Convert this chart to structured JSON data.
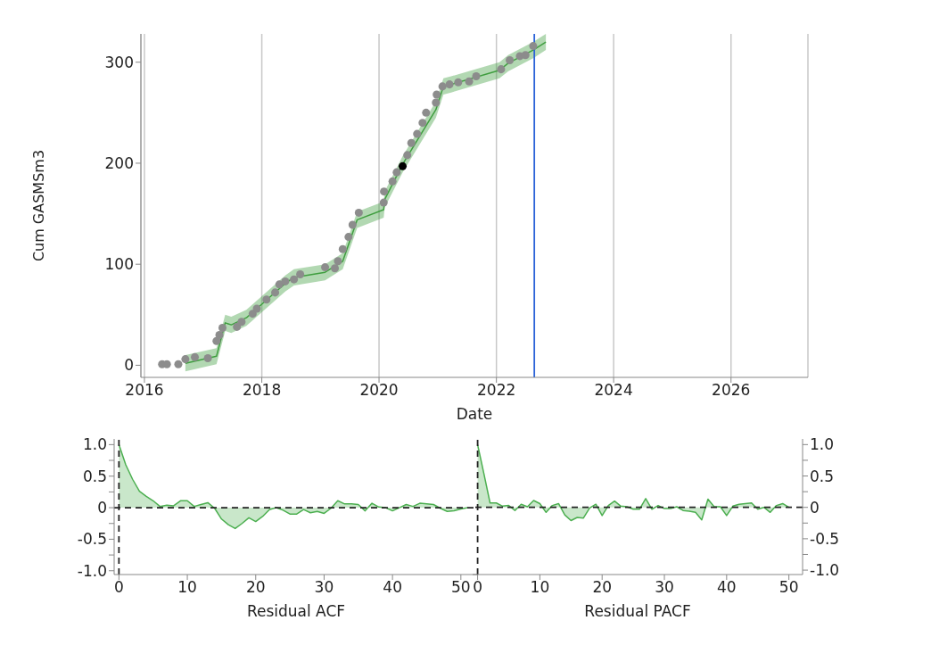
{
  "chart_data": [
    {
      "type": "scatter",
      "xlabel": "Date",
      "ylabel": "Cum GASMSm3",
      "xlim": [
        "2015-12-10",
        "2027-04-25"
      ],
      "xticks": [
        "2016",
        "2018",
        "2020",
        "2022",
        "2024",
        "2026"
      ],
      "ylim": [
        -12,
        328
      ],
      "yticks": [
        0,
        100,
        200,
        300
      ],
      "grid": "x",
      "series": [
        {
          "type": "line",
          "color": "#3f9e3f",
          "x": [
            "2016-09-12",
            "2017-03-25",
            "2017-05-18",
            "2017-06-25",
            "2017-09-27",
            "2018-05-27",
            "2018-07-20",
            "2019-01-30",
            "2019-05-20",
            "2019-08-18",
            "2020-01-30",
            "2020-02-05",
            "2020-05-27",
            "2020-12-20",
            "2021-02-05",
            "2021-03-25",
            "2022-01-20",
            "2022-03-15",
            "2022-08-18",
            "2022-11-05"
          ],
          "values": [
            2,
            9,
            42,
            40,
            47,
            81,
            87,
            92,
            103,
            144,
            154,
            164,
            199,
            253,
            276,
            278,
            292,
            299,
            312,
            320
          ],
          "lower": [
            -6,
            1,
            34,
            32,
            39,
            73,
            79,
            84,
            95,
            136,
            146,
            156,
            191,
            245,
            268,
            270,
            284,
            291,
            304,
            312
          ],
          "upper": [
            10,
            17,
            50,
            48,
            55,
            89,
            95,
            100,
            111,
            152,
            162,
            172,
            207,
            261,
            284,
            286,
            300,
            307,
            320,
            328
          ]
        },
        {
          "color": "#8c8c8c",
          "x": [
            "2016-04-20",
            "2016-05-20",
            "2016-07-30",
            "2016-09-12",
            "2016-11-10",
            "2017-01-30",
            "2017-03-25",
            "2017-04-12",
            "2017-05-01",
            "2017-07-30",
            "2017-08-28",
            "2017-11-05",
            "2017-12-01",
            "2018-01-30",
            "2018-03-25",
            "2018-04-20",
            "2018-05-27",
            "2018-07-20",
            "2018-08-28",
            "2019-01-30",
            "2019-04-01",
            "2019-04-20",
            "2019-05-20",
            "2019-06-25",
            "2019-07-20",
            "2019-08-28",
            "2020-01-30",
            "2020-02-01",
            "2020-03-25",
            "2020-04-20",
            "2020-06-25",
            "2020-07-20",
            "2020-08-25",
            "2020-09-28",
            "2020-10-20",
            "2020-12-20",
            "2020-12-25",
            "2021-01-30",
            "2021-03-15",
            "2021-05-08",
            "2021-07-15",
            "2021-08-28",
            "2022-01-30",
            "2022-03-25",
            "2022-05-27",
            "2022-07-01",
            "2022-08-18"
          ],
          "values": [
            1,
            1,
            1,
            6,
            8,
            7,
            24,
            30,
            37,
            38,
            43,
            51,
            56,
            65,
            72,
            80,
            83,
            85,
            90,
            97,
            96,
            103,
            115,
            127,
            139,
            151,
            161,
            172,
            182,
            191,
            208,
            220,
            229,
            240,
            250,
            260,
            268,
            276,
            278,
            280,
            281,
            286,
            293,
            302,
            306,
            307,
            316
          ]
        },
        {
          "color": "#000000",
          "x": [
            "2020-05-27"
          ],
          "values": [
            197
          ]
        }
      ],
      "ref_lines": [
        {
          "axis": "x",
          "value": "2022-08-25",
          "color": "#2a62d8",
          "line_style": "solid"
        }
      ]
    },
    {
      "type": "area",
      "xlabel": "Residual ACF",
      "xlim": [
        -0.7,
        52.5
      ],
      "xticks": [
        0,
        10,
        20,
        30,
        40,
        50
      ],
      "ylim": [
        -1.06,
        1.09
      ],
      "yticks": [
        {
          "value": -1,
          "label": "-1.0"
        },
        {
          "value": -0.75,
          "label": null
        },
        -0.5,
        {
          "value": -0.25,
          "label": null
        },
        0,
        {
          "value": 0.25,
          "label": null
        },
        0.5,
        {
          "value": 0.75,
          "label": null
        },
        {
          "value": 1,
          "label": "1.0"
        }
      ],
      "x": [
        0,
        1,
        2,
        3,
        4,
        5,
        6,
        7,
        8,
        9,
        10,
        11,
        12,
        13,
        14,
        15,
        16,
        17,
        18,
        19,
        20,
        21,
        22,
        23,
        24,
        25,
        26,
        27,
        28,
        29,
        30,
        31,
        32,
        33,
        34,
        35,
        36,
        37,
        38,
        39,
        40,
        41,
        42,
        43,
        44,
        45,
        46,
        47,
        48,
        49,
        50,
        51
      ],
      "series": [
        {
          "color": "#4caf50",
          "values": [
            1,
            0.68,
            0.45,
            0.26,
            0.18,
            0.11,
            0.02,
            0.04,
            0.03,
            0.11,
            0.11,
            0.02,
            0.05,
            0.08,
            -0.01,
            -0.18,
            -0.27,
            -0.33,
            -0.25,
            -0.16,
            -0.22,
            -0.14,
            -0.03,
            0,
            -0.04,
            -0.1,
            -0.1,
            -0.03,
            -0.08,
            -0.06,
            -0.09,
            -0.01,
            0.11,
            0.06,
            0.06,
            0.05,
            -0.05,
            0.07,
            0.01,
            0,
            -0.05,
            0,
            0.05,
            0.02,
            0.07,
            0.06,
            0.05,
            -0.01,
            -0.06,
            -0.05,
            -0.02,
            0
          ]
        }
      ],
      "ref_lines": [
        {
          "axis": "y",
          "value": 0,
          "color": "#222222",
          "line_style": "dashed"
        },
        {
          "axis": "x",
          "value": 0,
          "color": "#222222",
          "line_style": "dashed"
        }
      ]
    },
    {
      "type": "area",
      "xlabel": "Residual PACF",
      "xlim": [
        -0.8,
        52.2
      ],
      "xticks": [
        0,
        10,
        20,
        30,
        40,
        50
      ],
      "y2lim": [
        -1.07,
        1.09
      ],
      "y2ticks": [
        {
          "value": -1,
          "label": "-1.0"
        },
        {
          "value": -0.75,
          "label": null
        },
        -0.5,
        {
          "value": -0.25,
          "label": null
        },
        0,
        {
          "value": 0.25,
          "label": null
        },
        0.5,
        {
          "value": 0.75,
          "label": null
        },
        {
          "value": 1,
          "label": "1.0"
        }
      ],
      "x": [
        0,
        1,
        2,
        3,
        4,
        5,
        6,
        7,
        8,
        9,
        10,
        11,
        12,
        13,
        14,
        15,
        16,
        17,
        18,
        19,
        20,
        21,
        22,
        23,
        24,
        25,
        26,
        27,
        28,
        29,
        30,
        31,
        32,
        33,
        34,
        35,
        36,
        37,
        38,
        39,
        40,
        41,
        42,
        43,
        44,
        45,
        46,
        47,
        48,
        49,
        50
      ],
      "series": [
        {
          "color": "#4caf50",
          "axis": "y2",
          "values": [
            1,
            0.54,
            0.07,
            0.07,
            0.02,
            0.03,
            -0.05,
            0.05,
            0.01,
            0.11,
            0.06,
            -0.08,
            0.03,
            0.06,
            -0.12,
            -0.21,
            -0.16,
            -0.17,
            -0.01,
            0.05,
            -0.13,
            0.03,
            0.1,
            0.02,
            0.01,
            -0.03,
            -0.03,
            0.14,
            -0.03,
            0.03,
            -0.02,
            -0.02,
            0.01,
            -0.05,
            -0.06,
            -0.08,
            -0.2,
            0.13,
            0.01,
            0.01,
            -0.13,
            0.02,
            0.05,
            0.06,
            0.07,
            -0.03,
            0,
            -0.08,
            0.03,
            0.06,
            0
          ]
        }
      ],
      "ref_lines": [
        {
          "axis": "y2",
          "value": 0,
          "color": "#222222",
          "line_style": "dashed"
        },
        {
          "axis": "x",
          "value": 0,
          "color": "#222222",
          "line_style": "dashed"
        }
      ]
    }
  ]
}
